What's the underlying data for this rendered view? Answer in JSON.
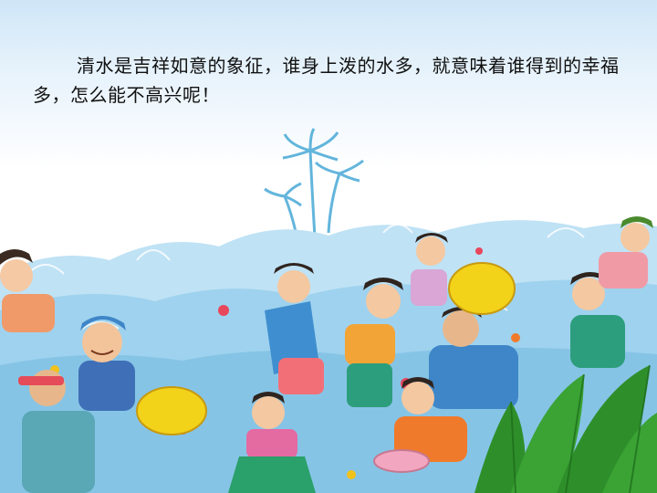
{
  "slide": {
    "caption": "清水是吉祥如意的象征，谁身上泼的水多，就意味着谁得到的幸福多，怎么能不高兴呢！"
  },
  "illustration": {
    "colors": {
      "sky": "#cfe6f7",
      "water": "#9fd2ee",
      "palm": "#48a9d6",
      "bowl": "#f3d21a",
      "foliage": "#2e8f2a"
    }
  }
}
